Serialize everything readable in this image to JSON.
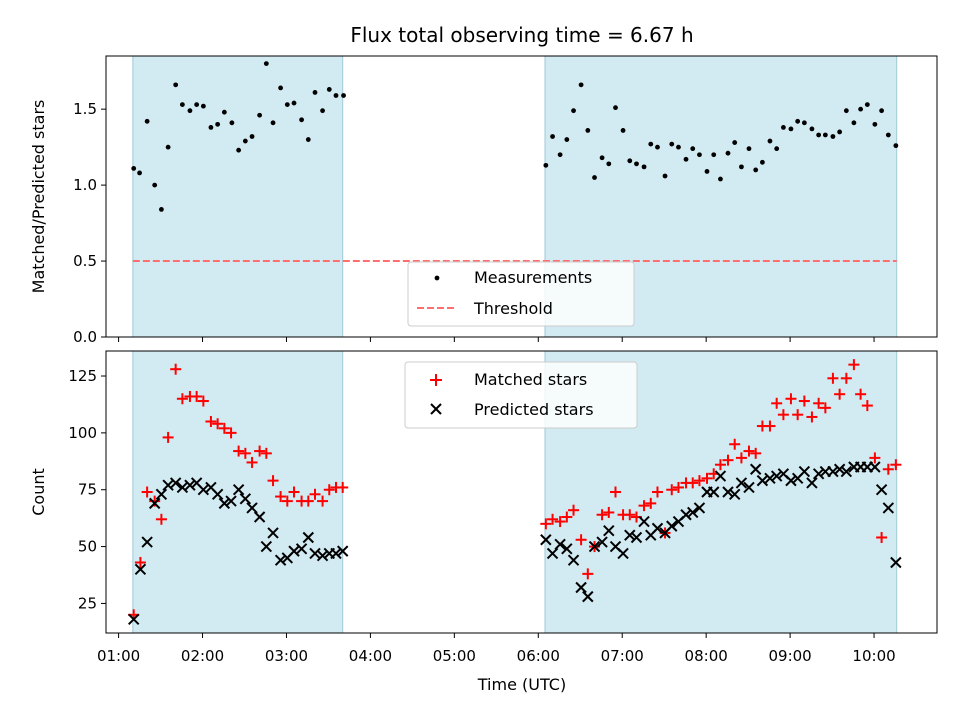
{
  "chart_data": {
    "type": "scatter",
    "title": "Flux total observing time = 6.67 h",
    "xlabel": "Time (UTC)",
    "x_unit": "hours UTC",
    "xlim": [
      0.85,
      10.75
    ],
    "x_ticks": [
      1,
      2,
      3,
      4,
      5,
      6,
      7,
      8,
      9,
      10
    ],
    "x_tick_labels": [
      "01:00",
      "02:00",
      "03:00",
      "04:00",
      "05:00",
      "06:00",
      "07:00",
      "08:00",
      "09:00",
      "10:00"
    ],
    "observing_windows": [
      [
        1.17,
        3.67
      ],
      [
        6.08,
        10.27
      ]
    ],
    "colors": {
      "window": "#add8e6",
      "measurements": "#000000",
      "threshold": "#ff6f6f",
      "matched": "#ff0000",
      "predicted": "#000000"
    },
    "panels": [
      {
        "ylabel": "Matched/Predicted stars",
        "ylim": [
          0,
          1.85
        ],
        "y_ticks": [
          0.0,
          0.5,
          1.0,
          1.5
        ],
        "y_tick_labels": [
          "0.0",
          "0.5",
          "1.0",
          "1.5"
        ],
        "legend": [
          "Measurements",
          "Threshold"
        ],
        "threshold": 0.5,
        "series": [
          {
            "name": "Measurements",
            "marker": "dot",
            "x": [
              1.18,
              1.25,
              1.34,
              1.43,
              1.51,
              1.59,
              1.68,
              1.76,
              1.85,
              1.93,
              2.01,
              2.1,
              2.18,
              2.26,
              2.35,
              2.43,
              2.51,
              2.59,
              2.68,
              2.76,
              2.84,
              2.93,
              3.01,
              3.09,
              3.18,
              3.26,
              3.34,
              3.43,
              3.51,
              3.59,
              3.68,
              6.09,
              6.17,
              6.26,
              6.34,
              6.42,
              6.51,
              6.59,
              6.67,
              6.76,
              6.84,
              6.92,
              7.01,
              7.09,
              7.17,
              7.26,
              7.34,
              7.42,
              7.51,
              7.59,
              7.67,
              7.76,
              7.84,
              7.92,
              8.01,
              8.09,
              8.17,
              8.26,
              8.34,
              8.42,
              8.51,
              8.59,
              8.67,
              8.76,
              8.84,
              8.92,
              9.01,
              9.09,
              9.17,
              9.26,
              9.34,
              9.42,
              9.51,
              9.59,
              9.67,
              9.76,
              9.84,
              9.92,
              10.01,
              10.09,
              10.17,
              10.26
            ],
            "y": [
              1.11,
              1.08,
              1.42,
              1.0,
              0.84,
              1.25,
              1.66,
              1.53,
              1.49,
              1.53,
              1.52,
              1.38,
              1.4,
              1.48,
              1.41,
              1.23,
              1.29,
              1.32,
              1.46,
              1.8,
              1.41,
              1.64,
              1.53,
              1.54,
              1.43,
              1.3,
              1.61,
              1.49,
              1.63,
              1.59,
              1.59,
              1.13,
              1.32,
              1.2,
              1.3,
              1.49,
              1.66,
              1.36,
              1.05,
              1.18,
              1.14,
              1.51,
              1.36,
              1.16,
              1.14,
              1.12,
              1.27,
              1.25,
              1.06,
              1.27,
              1.25,
              1.17,
              1.24,
              1.2,
              1.09,
              1.2,
              1.04,
              1.21,
              1.28,
              1.12,
              1.24,
              1.1,
              1.15,
              1.29,
              1.24,
              1.38,
              1.37,
              1.42,
              1.41,
              1.37,
              1.33,
              1.33,
              1.32,
              1.35,
              1.49,
              1.41,
              1.5,
              1.53,
              1.4,
              1.49,
              1.33,
              1.26
            ]
          }
        ]
      },
      {
        "ylabel": "Count",
        "ylim": [
          12,
          136
        ],
        "y_ticks": [
          25,
          50,
          75,
          100,
          125
        ],
        "y_tick_labels": [
          "25",
          "50",
          "75",
          "100",
          "125"
        ],
        "legend": [
          "Matched stars",
          "Predicted stars"
        ],
        "series": [
          {
            "name": "Matched stars",
            "marker": "plus",
            "x": [
              1.18,
              1.26,
              1.34,
              1.43,
              1.51,
              1.59,
              1.68,
              1.76,
              1.85,
              1.93,
              2.01,
              2.1,
              2.18,
              2.26,
              2.34,
              2.43,
              2.51,
              2.59,
              2.68,
              2.76,
              2.84,
              2.93,
              3.01,
              3.09,
              3.18,
              3.26,
              3.34,
              3.43,
              3.51,
              3.59,
              3.67,
              6.09,
              6.17,
              6.26,
              6.34,
              6.42,
              6.51,
              6.59,
              6.67,
              6.76,
              6.84,
              6.92,
              7.01,
              7.09,
              7.17,
              7.26,
              7.34,
              7.42,
              7.51,
              7.59,
              7.67,
              7.76,
              7.84,
              7.92,
              8.01,
              8.09,
              8.17,
              8.26,
              8.34,
              8.42,
              8.51,
              8.59,
              8.67,
              8.76,
              8.84,
              8.92,
              9.01,
              9.09,
              9.17,
              9.26,
              9.34,
              9.42,
              9.51,
              9.59,
              9.67,
              9.76,
              9.84,
              9.92,
              10.01,
              10.09,
              10.17,
              10.26
            ],
            "y": [
              20,
              43,
              74,
              70,
              62,
              98,
              128,
              115,
              116,
              116,
              114,
              105,
              104,
              102,
              100,
              92,
              91,
              87,
              92,
              91,
              79,
              72,
              70,
              74,
              70,
              70,
              73,
              70,
              75,
              76,
              76,
              60,
              62,
              61,
              63,
              66,
              53,
              38,
              50,
              64,
              65,
              74,
              64,
              64,
              63,
              68,
              69,
              74,
              56,
              75,
              76,
              78,
              78,
              79,
              80,
              82,
              86,
              88,
              95,
              89,
              92,
              91,
              103,
              103,
              113,
              108,
              115,
              108,
              114,
              107,
              113,
              111,
              124,
              117,
              124,
              130,
              117,
              112,
              89,
              54,
              84,
              86
            ],
            "_note_unused": []
          },
          {
            "name": "Predicted stars",
            "marker": "x",
            "x": [
              1.18,
              1.26,
              1.34,
              1.43,
              1.51,
              1.59,
              1.68,
              1.76,
              1.85,
              1.93,
              2.01,
              2.1,
              2.18,
              2.26,
              2.34,
              2.43,
              2.51,
              2.59,
              2.68,
              2.76,
              2.84,
              2.93,
              3.01,
              3.09,
              3.18,
              3.26,
              3.34,
              3.43,
              3.51,
              3.59,
              3.67,
              6.09,
              6.17,
              6.26,
              6.34,
              6.42,
              6.51,
              6.59,
              6.67,
              6.76,
              6.84,
              6.92,
              7.01,
              7.09,
              7.17,
              7.26,
              7.34,
              7.42,
              7.51,
              7.59,
              7.67,
              7.76,
              7.84,
              7.92,
              8.01,
              8.09,
              8.17,
              8.26,
              8.34,
              8.42,
              8.51,
              8.59,
              8.67,
              8.76,
              8.84,
              8.92,
              9.01,
              9.09,
              9.17,
              9.26,
              9.34,
              9.42,
              9.51,
              9.59,
              9.67,
              9.76,
              9.84,
              9.92,
              10.01,
              10.09,
              10.17,
              10.26
            ],
            "y": [
              18,
              40,
              52,
              69,
              73,
              77,
              78,
              76,
              77,
              78,
              75,
              76,
              73,
              69,
              70,
              75,
              71,
              67,
              63,
              50,
              56,
              44,
              45,
              48,
              49,
              54,
              47,
              46,
              47,
              47,
              48,
              53,
              47,
              51,
              49,
              44,
              32,
              28,
              50,
              52,
              57,
              50,
              47,
              55,
              54,
              61,
              55,
              58,
              56,
              59,
              61,
              64,
              65,
              67,
              74,
              74,
              81,
              74,
              73,
              78,
              76,
              84,
              79,
              80,
              81,
              82,
              79,
              80,
              83,
              78,
              82,
              83,
              83,
              84,
              83,
              85,
              85,
              85,
              85,
              75,
              67,
              43
            ]
          }
        ]
      }
    ]
  }
}
